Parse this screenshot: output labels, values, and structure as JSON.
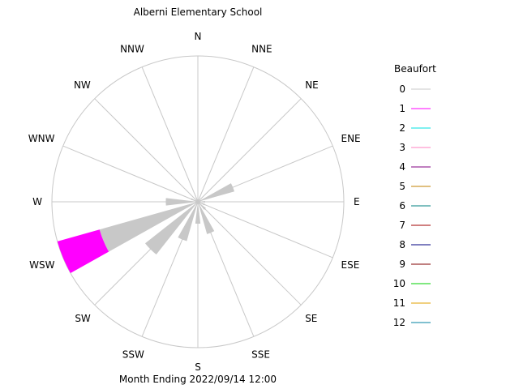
{
  "chart_data": {
    "type": "windrose",
    "title": "Alberni Elementary School",
    "footer": "Month Ending 2022/09/14 12:00",
    "directions": [
      "N",
      "NNE",
      "NE",
      "ENE",
      "E",
      "ESE",
      "SE",
      "SSE",
      "S",
      "SSW",
      "SW",
      "WSW",
      "W",
      "WNW",
      "NW",
      "NNW"
    ],
    "scale_max": 1.0,
    "radial_rings": [
      1.0
    ],
    "grid_color": "#c8c8c8",
    "legend": {
      "title": "Beaufort",
      "entries": [
        {
          "label": "0",
          "color": "#c8c8c8"
        },
        {
          "label": "1",
          "color": "#ff00ff"
        },
        {
          "label": "2",
          "color": "#00e0e0"
        },
        {
          "label": "3",
          "color": "#ff80c0"
        },
        {
          "label": "4",
          "color": "#800080"
        },
        {
          "label": "5",
          "color": "#c08000"
        },
        {
          "label": "6",
          "color": "#008080"
        },
        {
          "label": "7",
          "color": "#a00000"
        },
        {
          "label": "8",
          "color": "#000080"
        },
        {
          "label": "9",
          "color": "#800000"
        },
        {
          "label": "10",
          "color": "#00d000"
        },
        {
          "label": "11",
          "color": "#e0a000"
        },
        {
          "label": "12",
          "color": "#0080a0"
        }
      ]
    },
    "wedges": [
      {
        "direction": "ENE",
        "segments": [
          0.26
        ]
      },
      {
        "direction": "E",
        "segments": [
          0.05
        ]
      },
      {
        "direction": "ESE",
        "segments": [
          0.05
        ]
      },
      {
        "direction": "SE",
        "segments": [
          0.07
        ]
      },
      {
        "direction": "SSE",
        "segments": [
          0.23
        ]
      },
      {
        "direction": "S",
        "segments": [
          0.15
        ]
      },
      {
        "direction": "SSW",
        "segments": [
          0.28
        ]
      },
      {
        "direction": "SW",
        "segments": [
          0.46
        ]
      },
      {
        "direction": "WSW",
        "segments": [
          0.7,
          0.3
        ]
      },
      {
        "direction": "W",
        "segments": [
          0.22
        ]
      },
      {
        "direction": "WNW",
        "segments": [
          0.05
        ]
      },
      {
        "direction": "NNW",
        "segments": [
          0.03
        ]
      }
    ]
  }
}
